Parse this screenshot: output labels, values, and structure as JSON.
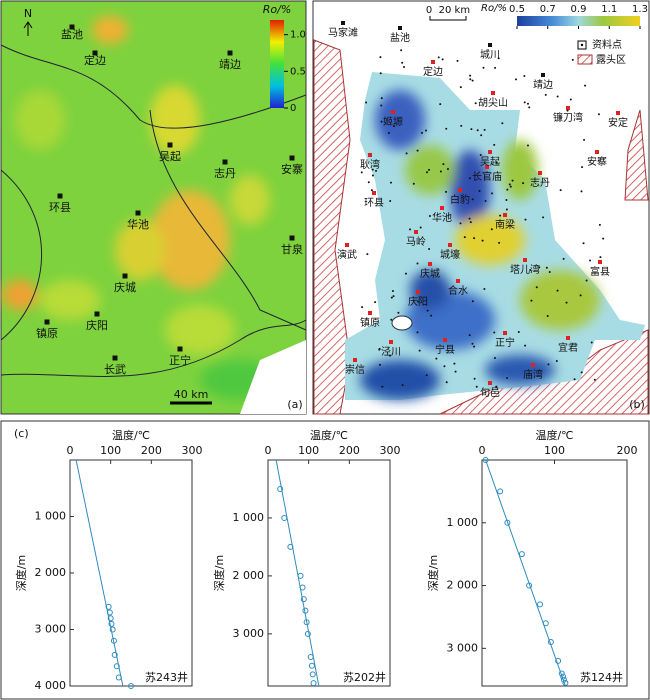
{
  "map_a": {
    "panel_label": "(a)",
    "north": "N",
    "scale_bar": "40 km",
    "colorbar": {
      "title": "Ro/%",
      "range": [
        0,
        1.2
      ],
      "ticks": [
        0,
        0.5,
        {
          "value": 1,
          "label": "1.0"
        }
      ]
    },
    "towns": [
      "盐池",
      "定边",
      "靖边",
      "吴起",
      "志丹",
      "安寨",
      "环县",
      "华池",
      "甘泉",
      "庆城",
      "庆阳",
      "镇原",
      "正宁",
      "长武"
    ]
  },
  "map_b": {
    "panel_label": "(b)",
    "scale_bar": "0  20 km",
    "colorbar": {
      "title": "Ro/%",
      "range": [
        0.5,
        1.3
      ],
      "ticks": [
        0.5,
        0.7,
        0.9,
        1.1,
        1.3
      ]
    },
    "legend": [
      "资料点",
      "露头区"
    ],
    "towns": [
      "马家滩",
      "盐池",
      "城川",
      "定边",
      "靖边",
      "胡尖山",
      "镰刀湾",
      "安定",
      "姬塬",
      "吴起",
      "耿湾",
      "长官庙",
      "安寨",
      "志丹",
      "环县",
      "白豹",
      "华池",
      "南梁",
      "演武",
      "马岭",
      "城壕",
      "塔儿湾",
      "富县",
      "庆城",
      "合水",
      "庆阳",
      "镇原",
      "泾川",
      "宁县",
      "正宁",
      "宜君",
      "崇信",
      "庙湾",
      "旬邑"
    ]
  },
  "panel_c_label": "(c)",
  "chart_data": [
    {
      "type": "scatter",
      "x_label": "温度/℃",
      "y_label": "深度/m",
      "well": "苏243井",
      "xlim": [
        0,
        300
      ],
      "xticks": [
        0,
        100,
        200,
        300
      ],
      "ylim": [
        0,
        4000
      ],
      "yticks": [
        {
          "value": 1000,
          "label": "1 000"
        },
        {
          "value": 2000,
          "label": "2 000"
        },
        {
          "value": 3000,
          "label": "3 000"
        },
        {
          "value": 4000,
          "label": "4 000"
        }
      ],
      "x": [
        95,
        98,
        100,
        102,
        105,
        108,
        110,
        115,
        120,
        150
      ],
      "y": [
        2600,
        2700,
        2800,
        2900,
        3000,
        3200,
        3450,
        3650,
        3850,
        4000
      ],
      "line_x": [
        15,
        130
      ],
      "line_y": [
        0,
        4000
      ],
      "color": "#2e8bc0"
    },
    {
      "type": "scatter",
      "x_label": "温度/℃",
      "y_label": "深度/m",
      "well": "苏202井",
      "xlim": [
        0,
        300
      ],
      "xticks": [
        0,
        100,
        200,
        300
      ],
      "ylim": [
        0,
        3900
      ],
      "yticks": [
        {
          "value": 1000,
          "label": "1 000"
        },
        {
          "value": 2000,
          "label": "2 000"
        },
        {
          "value": 3000,
          "label": "3 000"
        }
      ],
      "x": [
        30,
        40,
        55,
        80,
        85,
        88,
        92,
        95,
        98,
        105,
        108,
        110,
        112
      ],
      "y": [
        500,
        1000,
        1500,
        2000,
        2200,
        2400,
        2600,
        2800,
        3000,
        3400,
        3550,
        3700,
        3850
      ],
      "line_x": [
        20,
        125
      ],
      "line_y": [
        0,
        3900
      ],
      "color": "#2e8bc0"
    },
    {
      "type": "scatter",
      "x_label": "温度/℃",
      "y_label": "深度/m",
      "well": "苏124井",
      "xlim": [
        0,
        200
      ],
      "xticks": [
        0,
        100,
        200
      ],
      "ylim": [
        0,
        3600
      ],
      "yticks": [
        {
          "value": 1000,
          "label": "1 000"
        },
        {
          "value": 2000,
          "label": "2 000"
        },
        {
          "value": 3000,
          "label": "3 000"
        }
      ],
      "x": [
        5,
        25,
        35,
        55,
        65,
        80,
        88,
        95,
        105,
        110,
        112,
        113,
        115
      ],
      "y": [
        0,
        500,
        1000,
        1500,
        2000,
        2300,
        2600,
        2900,
        3200,
        3400,
        3450,
        3500,
        3550
      ],
      "line_x": [
        5,
        115
      ],
      "line_y": [
        0,
        3600
      ],
      "color": "#2e8bc0"
    }
  ]
}
